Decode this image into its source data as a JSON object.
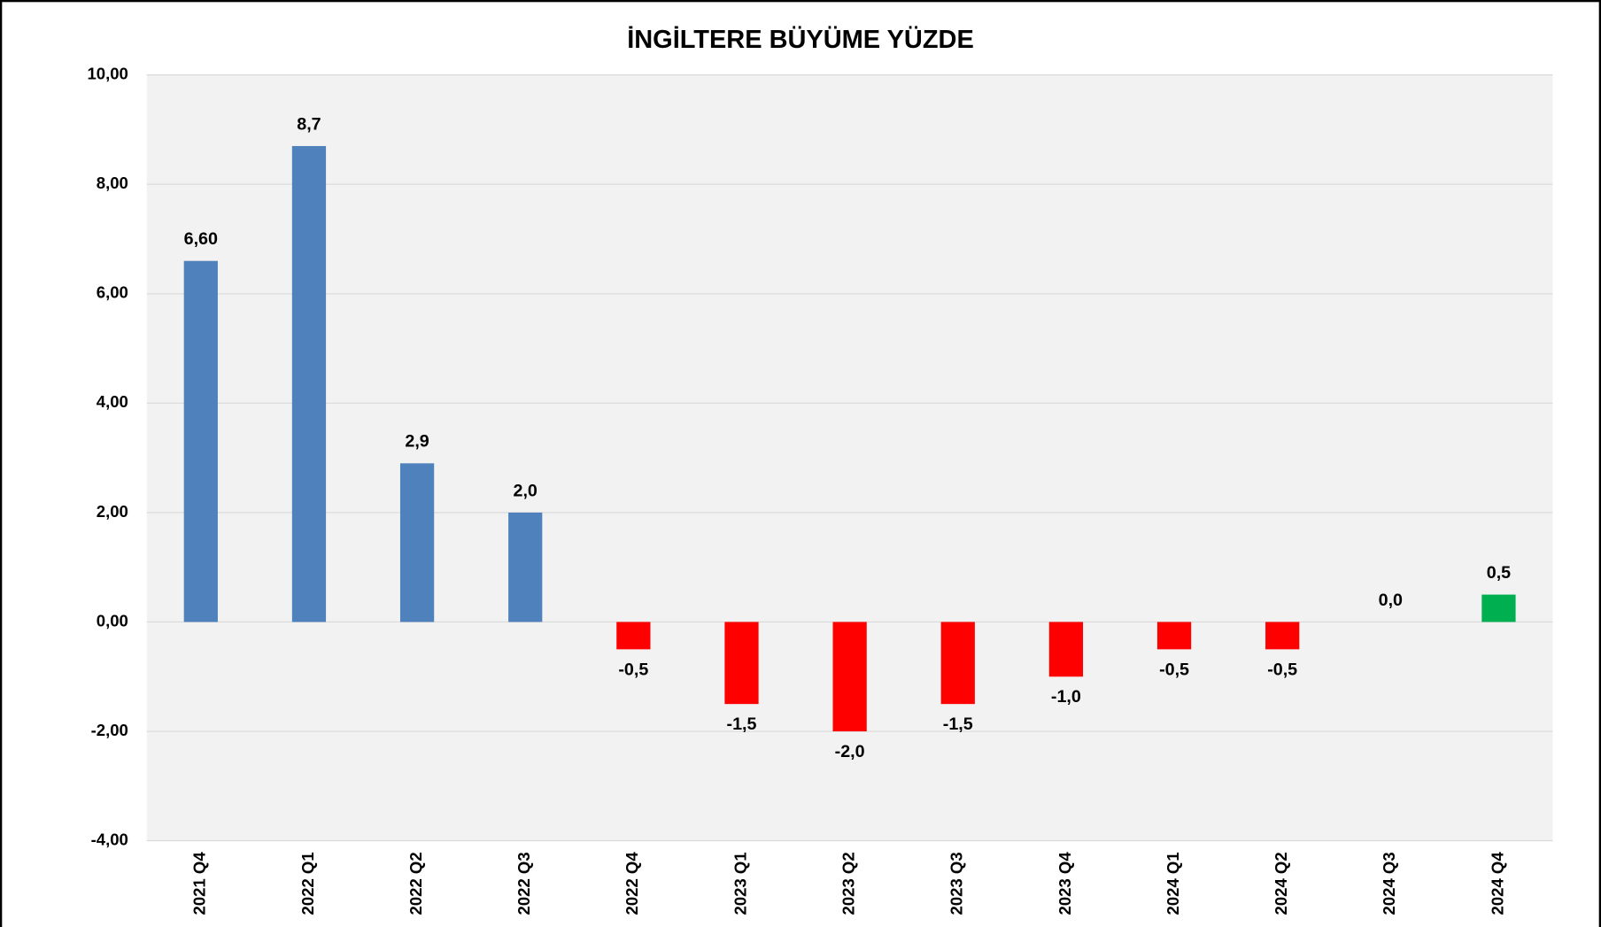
{
  "chart_data": {
    "type": "bar",
    "title": "İNGİLTERE BÜYÜME YÜZDE",
    "categories": [
      "2021 Q4",
      "2022 Q1",
      "2022 Q2",
      "2022 Q3",
      "2022 Q4",
      "2023 Q1",
      "2023 Q2",
      "2023 Q3",
      "2023 Q4",
      "2024 Q1",
      "2024 Q2",
      "2024 Q3",
      "2024 Q4"
    ],
    "values": [
      6.6,
      8.7,
      2.9,
      2.0,
      -0.5,
      -1.5,
      -2.0,
      -1.5,
      -1.0,
      -0.5,
      -0.5,
      0.0,
      0.5
    ],
    "value_labels": [
      "6,60",
      "8,7",
      "2,9",
      "2,0",
      "-0,5",
      "-1,5",
      "-2,0",
      "-1,5",
      "-1,0",
      "-0,5",
      "-0,5",
      "0,0",
      "0,5"
    ],
    "colors": [
      "#4f81bd",
      "#4f81bd",
      "#4f81bd",
      "#4f81bd",
      "#ff0000",
      "#ff0000",
      "#ff0000",
      "#ff0000",
      "#ff0000",
      "#ff0000",
      "#ff0000",
      "#ff0000",
      "#00b050"
    ],
    "ylim": [
      -4,
      10
    ],
    "yticks": [
      {
        "value": -4,
        "label": "-4,00"
      },
      {
        "value": -2,
        "label": "-2,00"
      },
      {
        "value": 0,
        "label": "0,00"
      },
      {
        "value": 2,
        "label": "2,00"
      },
      {
        "value": 4,
        "label": "4,00"
      },
      {
        "value": 6,
        "label": "6,00"
      },
      {
        "value": 8,
        "label": "8,00"
      },
      {
        "value": 10,
        "label": "10,00"
      }
    ],
    "grid": true
  }
}
